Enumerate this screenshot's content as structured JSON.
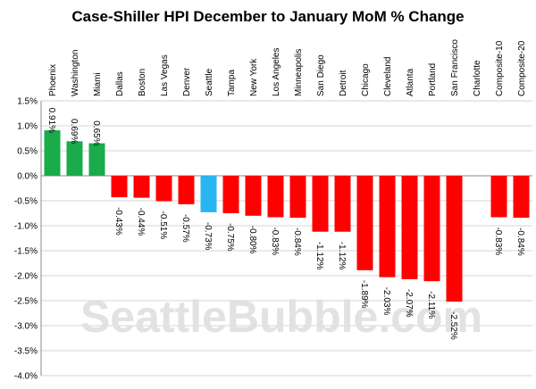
{
  "chart_data": {
    "type": "bar",
    "title": "Case-Shiller HPI December to January MoM % Change",
    "watermark": "SeattleBubble.com",
    "categories": [
      "Phoenix",
      "Washington",
      "Miami",
      "Dallas",
      "Boston",
      "Las Vegas",
      "Denver",
      "Seattle",
      "Tampa",
      "New York",
      "Los Angeles",
      "Minneapolis",
      "San Diego",
      "Detroit",
      "Chicago",
      "Cleveland",
      "Atlanta",
      "Portland",
      "San Francisco",
      "Charlotte",
      "Composite-10",
      "Composite-20"
    ],
    "values": [
      0.91,
      0.69,
      0.65,
      -0.43,
      -0.44,
      -0.51,
      -0.57,
      -0.73,
      -0.75,
      -0.8,
      -0.83,
      -0.84,
      -1.12,
      -1.12,
      -1.89,
      -2.03,
      -2.07,
      -2.11,
      -2.52,
      null,
      -0.83,
      -0.84
    ],
    "value_labels": [
      "0.91%",
      "0.69%",
      "0.65%",
      "-0.43%",
      "-0.44%",
      "-0.51%",
      "-0.57%",
      "-0.73%",
      "-0.75%",
      "-0.80%",
      "-0.83%",
      "-0.84%",
      "-1.12%",
      "-1.12%",
      "-1.89%",
      "-2.03%",
      "-2.07%",
      "-2.11%",
      "-2.52%",
      null,
      "-0.83%",
      "-0.84%"
    ],
    "colors": [
      "#1aab4b",
      "#1aab4b",
      "#1aab4b",
      "#ff0000",
      "#ff0000",
      "#ff0000",
      "#ff0000",
      "#29b6f0",
      "#ff0000",
      "#ff0000",
      "#ff0000",
      "#ff0000",
      "#ff0000",
      "#ff0000",
      "#ff0000",
      "#ff0000",
      "#ff0000",
      "#ff0000",
      "#ff0000",
      "#ff0000",
      "#ff0000",
      "#ff0000"
    ],
    "ylim": [
      -4,
      1.5
    ],
    "yticks": [
      {
        "value": 1.5,
        "label": "1.5%"
      },
      {
        "value": 1,
        "label": "1.0%"
      },
      {
        "value": 0.5,
        "label": "0.5%"
      },
      {
        "value": 0,
        "label": "0.0%"
      },
      {
        "value": -0.5,
        "label": "-0.5%"
      },
      {
        "value": -1,
        "label": "-1.0%"
      },
      {
        "value": -1.5,
        "label": "-1.5%"
      },
      {
        "value": -2,
        "label": "-2.0%"
      },
      {
        "value": -2.5,
        "label": "-2.5%"
      },
      {
        "value": -3,
        "label": "-3.0%"
      },
      {
        "value": -3.5,
        "label": "-3.5%"
      },
      {
        "value": -4,
        "label": "-4.0%"
      }
    ],
    "grid": true
  }
}
